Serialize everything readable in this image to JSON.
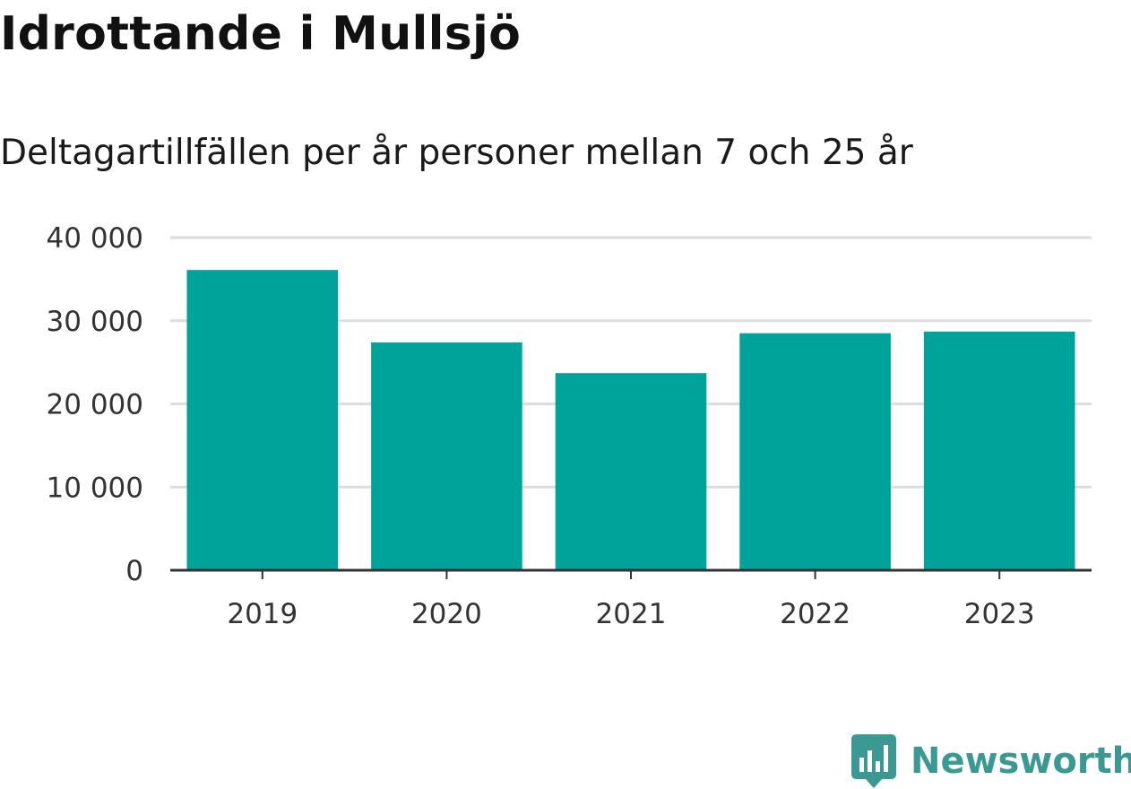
{
  "header": {
    "title": "Idrottande i Mullsjö",
    "subtitle": "Deltagartillfällen per år personer mellan 7 och 25 år"
  },
  "brand": {
    "name": "Newsworthy",
    "icon": "newsworthy-bar-chart-icon",
    "color": "#3a9a93"
  },
  "colors": {
    "bar": "#00a39a",
    "grid": "#dddddd",
    "axis": "#333333"
  },
  "chart_data": {
    "type": "bar",
    "categories": [
      "2019",
      "2020",
      "2021",
      "2022",
      "2023"
    ],
    "values": [
      36100,
      27400,
      23700,
      28500,
      28700
    ],
    "ylim": [
      0,
      40000
    ],
    "yticks": [
      0,
      10000,
      20000,
      30000,
      40000
    ],
    "ytick_labels": [
      "0",
      "10 000",
      "20 000",
      "30 000",
      "40 000"
    ],
    "xlabel": "",
    "ylabel": "",
    "grid": true,
    "legend": false
  }
}
